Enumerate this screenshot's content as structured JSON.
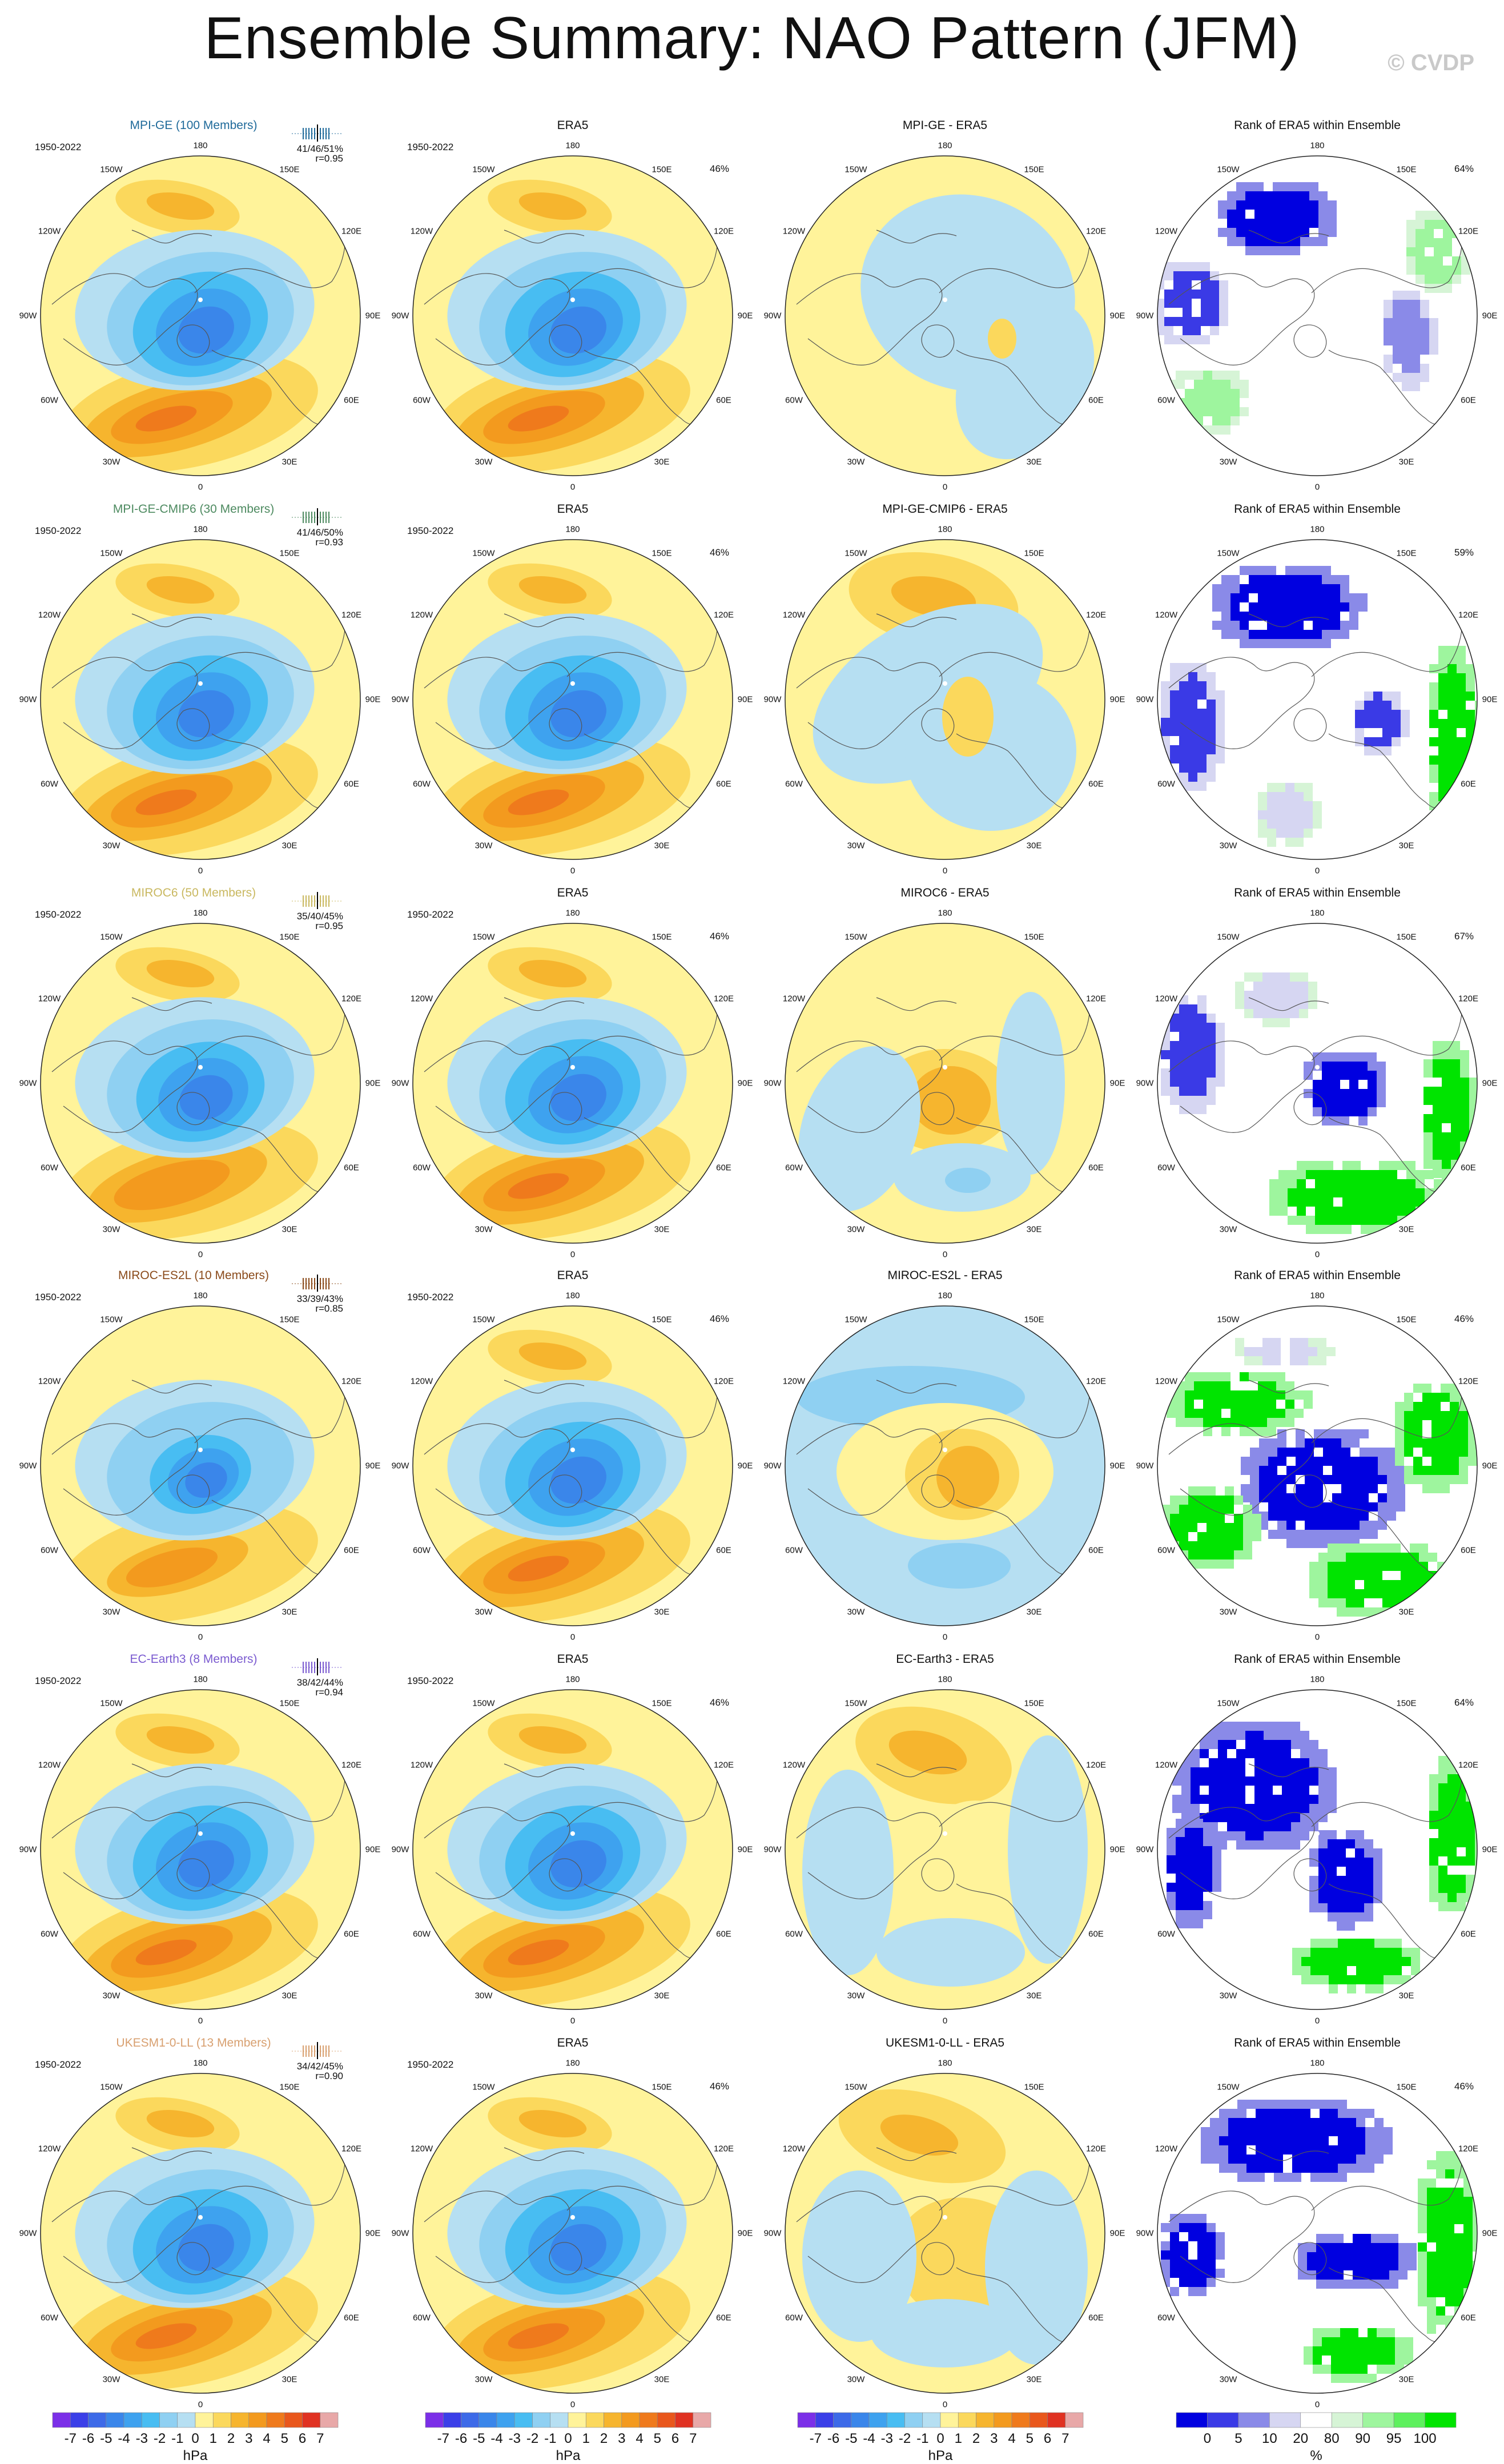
{
  "page": {
    "title": "Ensemble Summary: NAO Pattern (JFM)",
    "copyright": "© CVDP"
  },
  "lon_labels": {
    "top": "180",
    "bottom": "0",
    "left": "90W",
    "right": "90E",
    "ul2": "150W",
    "ur2": "150E",
    "ul1": "120W",
    "ur1": "120E",
    "ll1": "60W",
    "lr1": "60E",
    "ll2": "30W",
    "lr2": "30E"
  },
  "colors": {
    "neg": [
      "#7b2fe8",
      "#3b3fe8",
      "#3d6ae8",
      "#3a86ea",
      "#3ea2ef",
      "#48bdf2",
      "#8fd0f2",
      "#b6dff2"
    ],
    "pos": [
      "#fff39a",
      "#fbd85c",
      "#f6b52e",
      "#f39a1e",
      "#ef7a1c",
      "#e9571c",
      "#e03222",
      "#e8a8a8"
    ],
    "rank": [
      "#0000e0",
      "#3a3ae6",
      "#8a8ae8",
      "#d6d6f2",
      "#ffffff",
      "#d6f4d6",
      "#9ef59e",
      "#5ef05e",
      "#00e400"
    ]
  },
  "rows": [
    {
      "model": "MPI-GE (100 Members)",
      "model_color": "#1f6a9a",
      "period": "1950-2022",
      "stats1": "41/46/51%",
      "stats2": "r=0.95",
      "obs_label": "ERA5",
      "obs_pct": "46%",
      "diff_title": "MPI-GE - ERA5",
      "rank_title": "Rank of ERA5 within Ensemble",
      "rank_pct": "64%",
      "tick_color": "#1f6a9a"
    },
    {
      "model": "MPI-GE-CMIP6 (30 Members)",
      "model_color": "#4d8a60",
      "period": "1950-2022",
      "stats1": "41/46/50%",
      "stats2": "r=0.93",
      "obs_label": "ERA5",
      "obs_pct": "46%",
      "diff_title": "MPI-GE-CMIP6 - ERA5",
      "rank_title": "Rank of ERA5 within Ensemble",
      "rank_pct": "59%",
      "tick_color": "#4d8a60"
    },
    {
      "model": "MIROC6 (50 Members)",
      "model_color": "#c9b860",
      "period": "1950-2022",
      "stats1": "35/40/45%",
      "stats2": "r=0.95",
      "obs_label": "ERA5",
      "obs_pct": "46%",
      "diff_title": "MIROC6 - ERA5",
      "rank_title": "Rank of ERA5 within Ensemble",
      "rank_pct": "67%",
      "tick_color": "#c9b860"
    },
    {
      "model": "MIROC-ES2L (10 Members)",
      "model_color": "#8a4a1a",
      "period": "1950-2022",
      "stats1": "33/39/43%",
      "stats2": "r=0.85",
      "obs_label": "ERA5",
      "obs_pct": "46%",
      "diff_title": "MIROC-ES2L - ERA5",
      "rank_title": "Rank of ERA5 within Ensemble",
      "rank_pct": "46%",
      "tick_color": "#8a4a1a"
    },
    {
      "model": "EC-Earth3 (8 Members)",
      "model_color": "#7a5ad0",
      "period": "1950-2022",
      "stats1": "38/42/44%",
      "stats2": "r=0.94",
      "obs_label": "ERA5",
      "obs_pct": "46%",
      "diff_title": "EC-Earth3 - ERA5",
      "rank_title": "Rank of ERA5 within Ensemble",
      "rank_pct": "64%",
      "tick_color": "#7a5ad0"
    },
    {
      "model": "UKESM1-0-LL (13 Members)",
      "model_color": "#d8a070",
      "period": "1950-2022",
      "stats1": "34/42/45%",
      "stats2": "r=0.90",
      "obs_label": "ERA5",
      "obs_pct": "46%",
      "diff_title": "UKESM1-0-LL - ERA5",
      "rank_title": "Rank of ERA5 within Ensemble",
      "rank_pct": "46%",
      "tick_color": "#d8a070"
    }
  ],
  "colorbars": {
    "pattern": {
      "labels": [
        "-7",
        "-6",
        "-5",
        "-4",
        "-3",
        "-2",
        "-1",
        "0",
        "1",
        "2",
        "3",
        "4",
        "5",
        "6",
        "7"
      ],
      "unit": "hPa"
    },
    "rank": {
      "labels": [
        "0",
        "5",
        "10",
        "20",
        "80",
        "90",
        "95",
        "100"
      ],
      "unit": "%"
    }
  }
}
